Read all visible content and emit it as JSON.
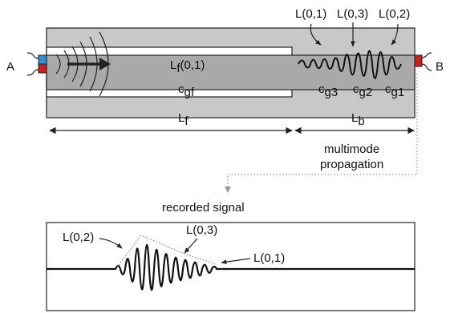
{
  "colors": {
    "outer_bar": "#c8c8c8",
    "inner_bar": "#a9a9a9",
    "sensor_a_blue": "#2f8fd0",
    "sensor_red": "#cc1f1f",
    "stroke": "#222222"
  },
  "labels": {
    "port_a": "A",
    "port_b": "B",
    "mode_01_top": "L(0,1)",
    "mode_03_top": "L(0,3)",
    "mode_02_top": "L(0,2)",
    "lf_main": "L",
    "lf_sub": "f",
    "lf_suffix": "(0,1)",
    "cgf_main": "c",
    "cgf_sub": "gf",
    "cg3_main": "c",
    "cg3_sub": "g3",
    "cg2_main": "c",
    "cg2_sub": "g2",
    "cg1_main": "c",
    "cg1_sub": "g1",
    "len_f_main": "L",
    "len_f_sub": "f",
    "len_b_main": "L",
    "len_b_sub": "b",
    "multimode_line1": "multimode",
    "multimode_line2": "propagation",
    "recorded_signal": "recorded signal",
    "sig_02": "L(0,2)",
    "sig_03": "L(0,3)",
    "sig_01": "L(0,1)"
  },
  "icons": {
    "sensor_a": "piezo-transducer",
    "sensor_b": "piezo-receiver"
  }
}
